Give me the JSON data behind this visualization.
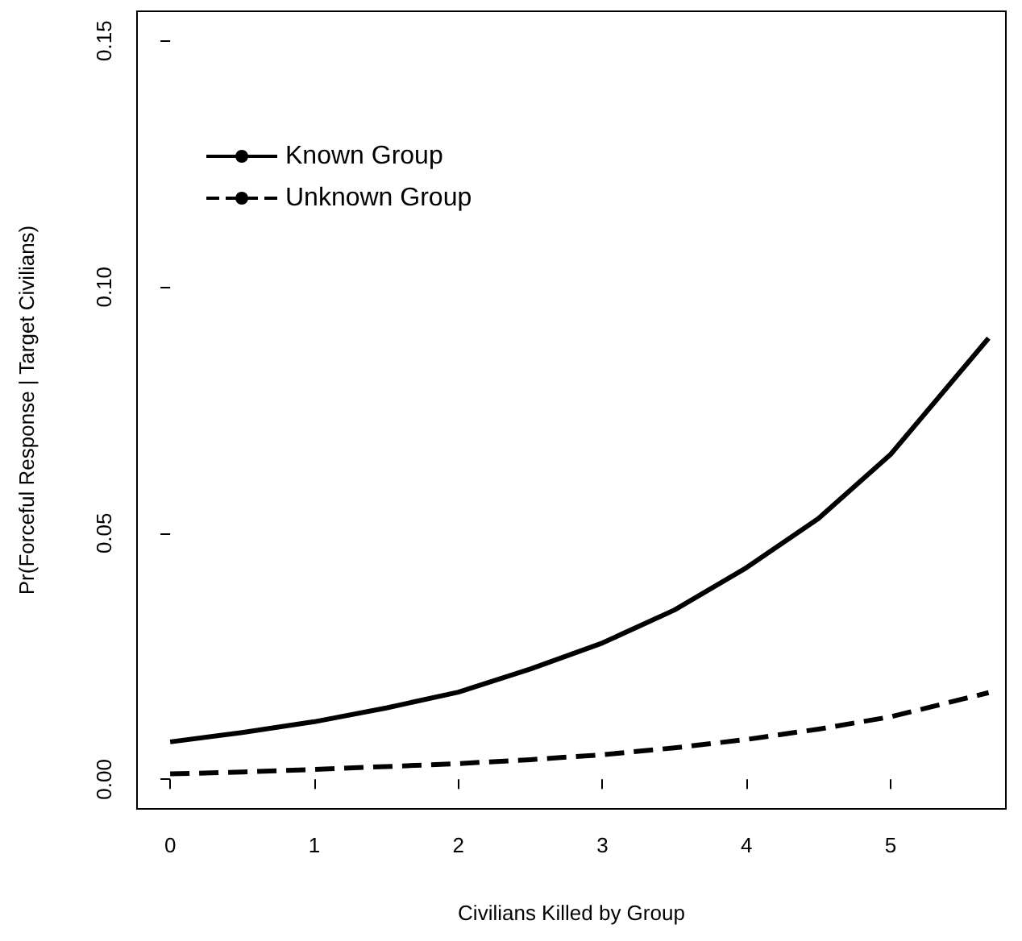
{
  "chart_data": {
    "type": "line",
    "xlabel": "Civilians Killed by Group",
    "ylabel": "Pr(Forceful Response | Target Civilians)",
    "xlim": [
      -0.23,
      5.8
    ],
    "xticks": [
      0,
      1,
      2,
      3,
      4,
      5
    ],
    "ylim": [
      -0.006,
      0.156
    ],
    "yticks": [
      {
        "value": 0,
        "label": "0.00"
      },
      0.05,
      {
        "value": 0.1,
        "label": "0.10"
      },
      0.15
    ],
    "grid": false,
    "legend": "top left",
    "marker": "none",
    "series": [
      {
        "name": "Known Group",
        "color": "#000000",
        "line_style": "solid",
        "x": [
          0,
          0.5,
          1,
          1.5,
          2,
          2.5,
          3,
          3.5,
          4,
          4.5,
          5,
          5.68
        ],
        "values": [
          0.0076,
          0.0095,
          0.0117,
          0.0145,
          0.0177,
          0.0224,
          0.0277,
          0.0344,
          0.043,
          0.053,
          0.066,
          0.0896
        ]
      },
      {
        "name": "Unknown Group",
        "color": "#000000",
        "line_style": "dashed",
        "x": [
          0,
          0.5,
          1,
          1.5,
          2,
          2.5,
          3,
          3.5,
          4,
          4.5,
          5,
          5.68
        ],
        "values": [
          0.0011,
          0.0015,
          0.002,
          0.0026,
          0.0032,
          0.004,
          0.005,
          0.0064,
          0.0081,
          0.0102,
          0.0127,
          0.0176
        ]
      }
    ]
  }
}
